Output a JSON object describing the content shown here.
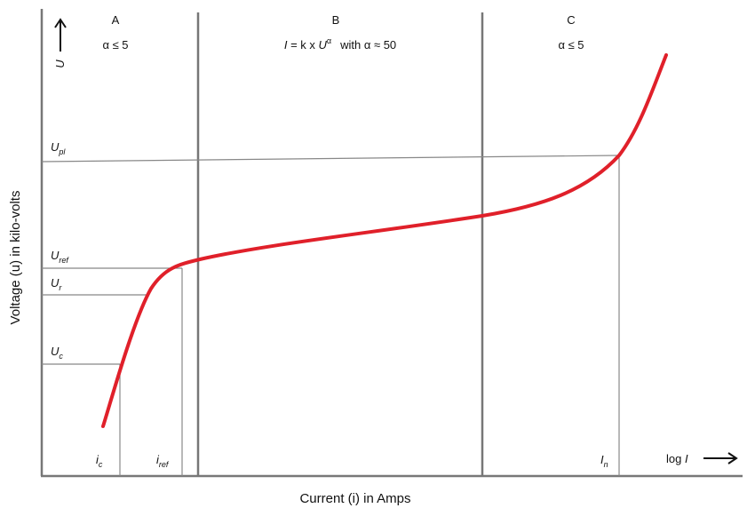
{
  "regions": [
    {
      "label": "A",
      "formula": "α ≤ 5"
    },
    {
      "label": "B",
      "formula": {
        "lhs": "I",
        "eq": " = k x ",
        "var": "U",
        "sup": "α",
        "rest": "with α ≈ 50"
      }
    },
    {
      "label": "C",
      "formula": "α ≤ 5"
    }
  ],
  "y_arrow_label": "U",
  "levels": [
    {
      "main": "U",
      "sub": "pl"
    },
    {
      "main": "U",
      "sub": "ref"
    },
    {
      "main": "U",
      "sub": "r"
    },
    {
      "main": "U",
      "sub": "c"
    }
  ],
  "currents": [
    {
      "main": "i",
      "sub": "c"
    },
    {
      "main": "i",
      "sub": "ref"
    },
    {
      "main": "I",
      "sub": "n"
    }
  ],
  "x_arrow_label": {
    "prefix": "log ",
    "var": "I"
  },
  "y_axis_title": "Voltage (u) in kilo-volts",
  "x_axis_title": "Current (i) in Amps"
}
